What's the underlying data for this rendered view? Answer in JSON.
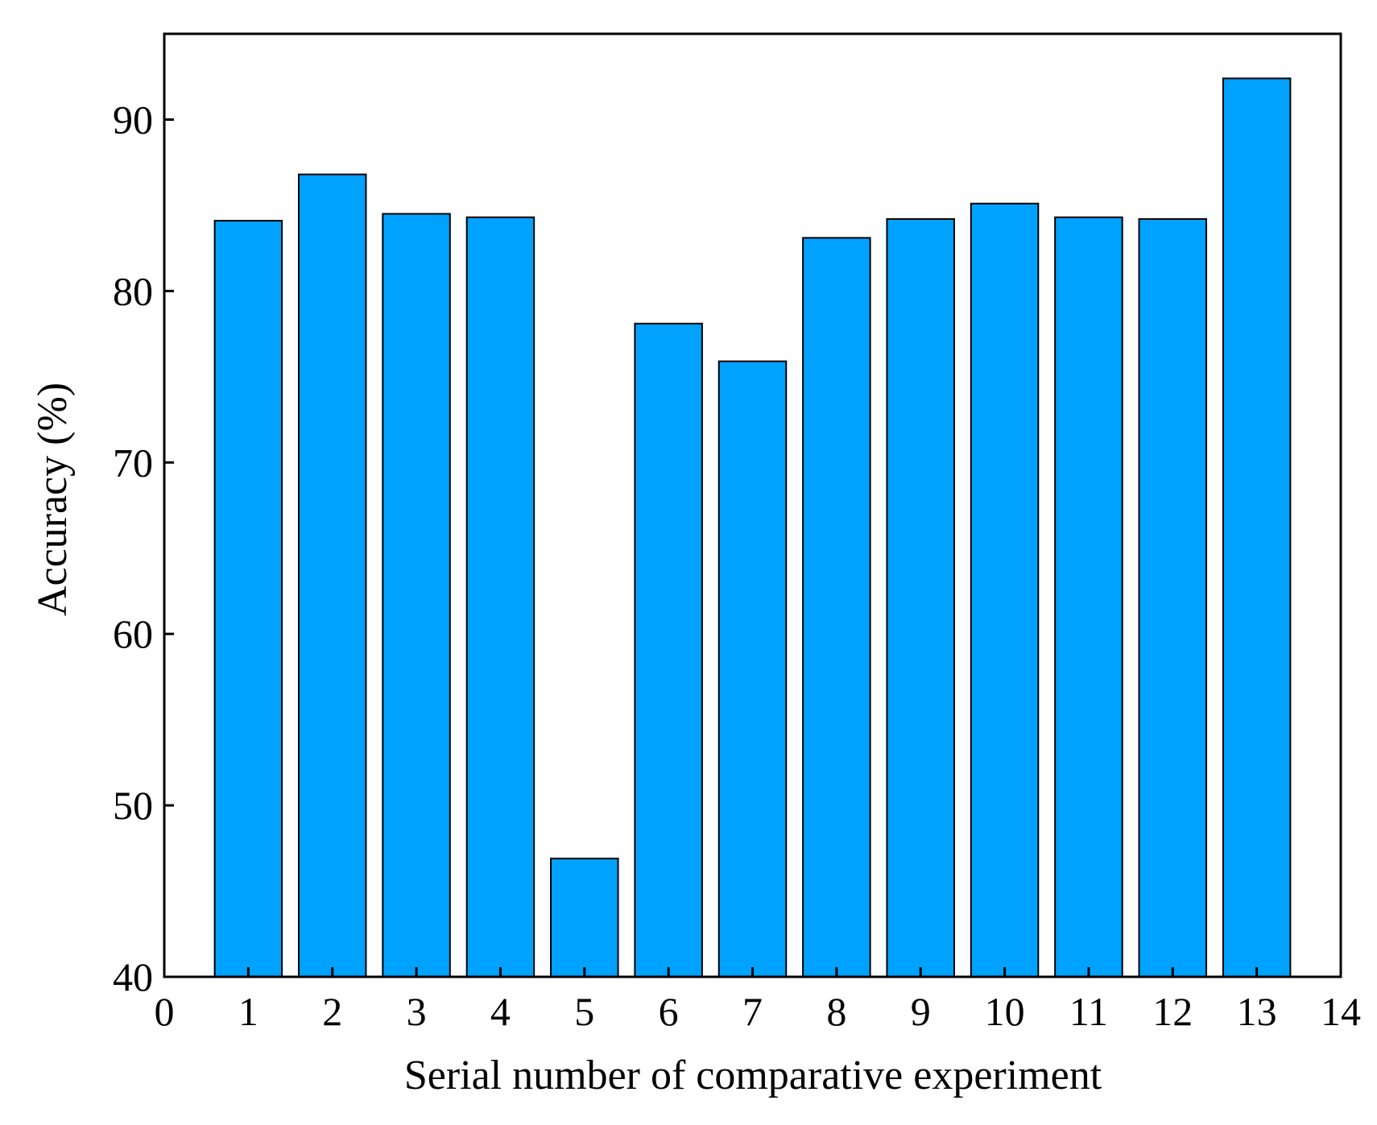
{
  "chart_data": {
    "type": "bar",
    "title": "",
    "xlabel": "Serial number of comparative experiment",
    "ylabel": "Accuracy (%)",
    "x": [
      1,
      2,
      3,
      4,
      5,
      6,
      7,
      8,
      9,
      10,
      11,
      12,
      13
    ],
    "values": [
      84.1,
      86.8,
      84.5,
      84.3,
      46.9,
      78.1,
      75.9,
      83.1,
      84.2,
      85.1,
      84.3,
      84.2,
      92.4
    ],
    "xlim": [
      0,
      14
    ],
    "ylim": [
      40,
      95
    ],
    "xticks": [
      0,
      1,
      2,
      3,
      4,
      5,
      6,
      7,
      8,
      9,
      10,
      11,
      12,
      13,
      14
    ],
    "yticks": [
      40,
      50,
      60,
      70,
      80,
      90
    ],
    "bar_color": "#00A2FF",
    "edge_color": "#000000",
    "grid": false,
    "legend": "none"
  }
}
